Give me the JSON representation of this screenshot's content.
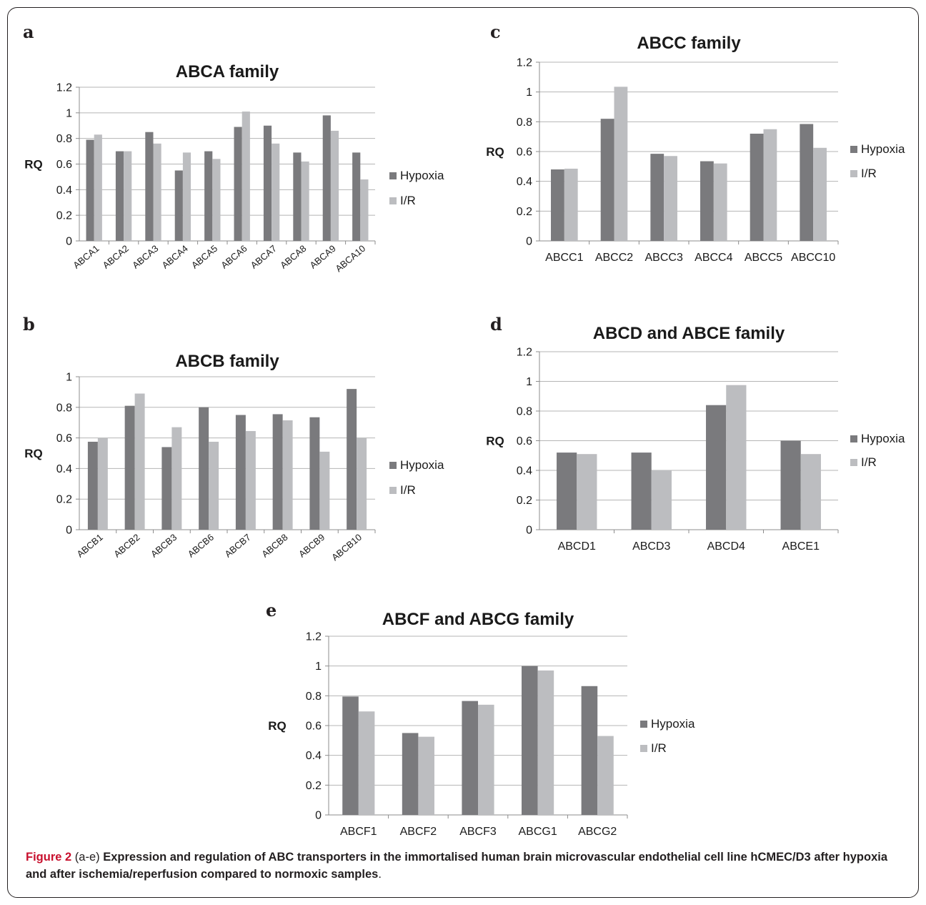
{
  "colors": {
    "hypoxia": "#7a7a7d",
    "ir": "#bcbdc0",
    "grid": "#b5b5b5",
    "axis": "#8c8c8c"
  },
  "caption": {
    "figure_label": "Figure 2",
    "panels_ref": "(a-e)",
    "text": "Expression and regulation of ABC transporters in the immortalised human brain microvascular endothelial cell line hCMEC/D3 after hypoxia and after ischemia/reperfusion compared to normoxic samples"
  },
  "chart_data": [
    {
      "panel": "a",
      "type": "bar",
      "title": "ABCA family",
      "ylabel": "RQ",
      "xlabel": "",
      "ylim": [
        0,
        1.2
      ],
      "yticks": [
        "0",
        "0.2",
        "0.4",
        "0.6",
        "0.8",
        "1",
        "1.2"
      ],
      "grid": true,
      "legend": "right",
      "rotated_labels": true,
      "categories": [
        "ABCA1",
        "ABCA2",
        "ABCA3",
        "ABCA4",
        "ABCA5",
        "ABCA6",
        "ABCA7",
        "ABCA8",
        "ABCA9",
        "ABCA10"
      ],
      "series": [
        {
          "name": "Hypoxia",
          "values": [
            0.79,
            0.7,
            0.85,
            0.55,
            0.7,
            0.89,
            0.9,
            0.69,
            0.98,
            0.69
          ]
        },
        {
          "name": "I/R",
          "values": [
            0.83,
            0.7,
            0.76,
            0.69,
            0.64,
            1.01,
            0.76,
            0.62,
            0.86,
            0.48
          ]
        }
      ]
    },
    {
      "panel": "b",
      "type": "bar",
      "title": "ABCB family",
      "ylabel": "RQ",
      "xlabel": "",
      "ylim": [
        0,
        1
      ],
      "yticks": [
        "0",
        "0.2",
        "0.4",
        "0.6",
        "0.8",
        "1"
      ],
      "grid": true,
      "legend": "right",
      "rotated_labels": true,
      "categories": [
        "ABCB1",
        "ABCB2",
        "ABCB3",
        "ABCB6",
        "ABCB7",
        "ABCB8",
        "ABCB9",
        "ABCB10"
      ],
      "series": [
        {
          "name": "Hypoxia",
          "values": [
            0.575,
            0.81,
            0.54,
            0.8,
            0.75,
            0.755,
            0.735,
            0.92
          ]
        },
        {
          "name": "I/R",
          "values": [
            0.6,
            0.89,
            0.67,
            0.575,
            0.645,
            0.715,
            0.51,
            0.6
          ]
        }
      ]
    },
    {
      "panel": "c",
      "type": "bar",
      "title": "ABCC family",
      "ylabel": "RQ",
      "xlabel": "",
      "ylim": [
        0,
        1.2
      ],
      "yticks": [
        "0",
        "0.2",
        "0.4",
        "0.6",
        "0.8",
        "1",
        "1.2"
      ],
      "grid": true,
      "legend": "right",
      "rotated_labels": false,
      "categories": [
        "ABCC1",
        "ABCC2",
        "ABCC3",
        "ABCC4",
        "ABCC5",
        "ABCC10"
      ],
      "series": [
        {
          "name": "Hypoxia",
          "values": [
            0.48,
            0.82,
            0.585,
            0.535,
            0.72,
            0.785
          ]
        },
        {
          "name": "I/R",
          "values": [
            0.485,
            1.035,
            0.57,
            0.52,
            0.75,
            0.625
          ]
        }
      ]
    },
    {
      "panel": "d",
      "type": "bar",
      "title": "ABCD and ABCE family",
      "ylabel": "RQ",
      "xlabel": "",
      "ylim": [
        0,
        1.2
      ],
      "yticks": [
        "0",
        "0.2",
        "0.4",
        "0.6",
        "0.8",
        "1",
        "1.2"
      ],
      "grid": true,
      "legend": "right",
      "rotated_labels": false,
      "categories": [
        "ABCD1",
        "ABCD3",
        "ABCD4",
        "ABCE1"
      ],
      "series": [
        {
          "name": "Hypoxia",
          "values": [
            0.52,
            0.52,
            0.84,
            0.6
          ]
        },
        {
          "name": "I/R",
          "values": [
            0.51,
            0.4,
            0.975,
            0.51
          ]
        }
      ]
    },
    {
      "panel": "e",
      "type": "bar",
      "title": "ABCF and ABCG family",
      "ylabel": "RQ",
      "xlabel": "",
      "ylim": [
        0,
        1.2
      ],
      "yticks": [
        "0",
        "0.2",
        "0.4",
        "0.6",
        "0.8",
        "1",
        "1.2"
      ],
      "grid": true,
      "legend": "right",
      "rotated_labels": false,
      "categories": [
        "ABCF1",
        "ABCF2",
        "ABCF3",
        "ABCG1",
        "ABCG2"
      ],
      "series": [
        {
          "name": "Hypoxia",
          "values": [
            0.795,
            0.55,
            0.765,
            1.0,
            0.865
          ]
        },
        {
          "name": "I/R",
          "values": [
            0.695,
            0.525,
            0.74,
            0.97,
            0.53
          ]
        }
      ]
    }
  ]
}
